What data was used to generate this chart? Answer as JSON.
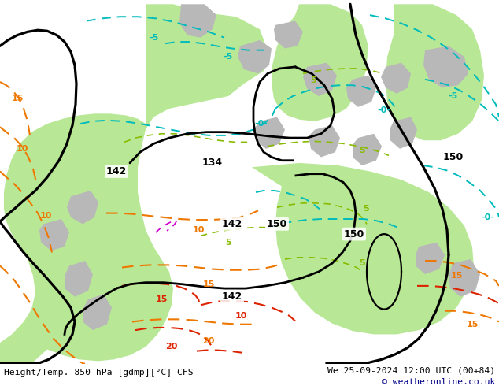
{
  "title_left": "Height/Temp. 850 hPa [gdmp][°C] CFS",
  "title_right": "We 25-09-2024 12:00 UTC (00+84)",
  "copyright": "© weatheronline.co.uk",
  "fig_width": 6.34,
  "fig_height": 4.9,
  "dpi": 100,
  "bg_color": "#d8d8d8",
  "green_color": "#b8e896",
  "gray_color": "#b8b8b8",
  "footer_bg": "#ffffff",
  "copyright_color": "#00008b",
  "black_lw": 2.0,
  "cyan_color": "#00bbbb",
  "orange_color": "#ee7700",
  "red_color": "#dd2200",
  "yellow_green_color": "#88bb00",
  "magenta_color": "#cc00cc",
  "bottom_bar_height": 0.058
}
